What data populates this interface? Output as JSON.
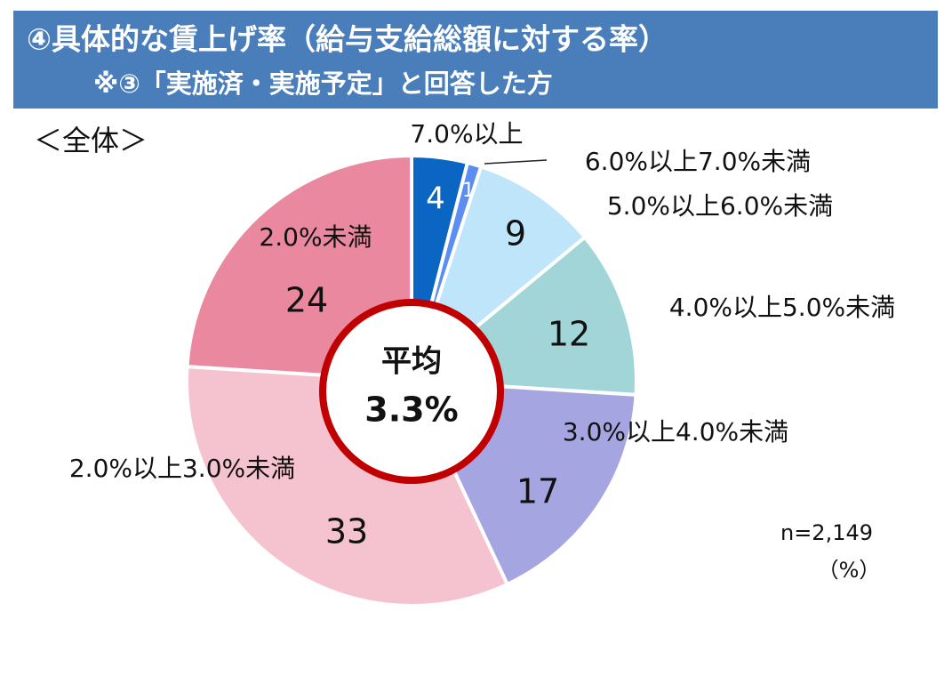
{
  "chart_data": {
    "type": "pie",
    "title": "④具体的な賃上げ率（給与支給総額に対する率）",
    "subtitle": "※③「実施済・実施予定」と回答した方",
    "panel_label": "＜全体＞",
    "center_title": "平均",
    "center_value": "3.3%",
    "note": "n=2,149",
    "unit": "（%）",
    "categories": [
      "7.0%以上",
      "6.0%以上7.0%未満",
      "5.0%以上6.0%未満",
      "4.0%以上5.0%未満",
      "3.0%以上4.0%未満",
      "2.0%以上3.0%未満",
      "2.0%未満"
    ],
    "values": [
      4,
      1,
      9,
      12,
      17,
      33,
      24
    ],
    "colors": [
      "#0a66c2",
      "#5b8ef0",
      "#bfe5fb",
      "#a2d5d8",
      "#a5a5e2",
      "#f5c3d0",
      "#e9889f"
    ]
  }
}
